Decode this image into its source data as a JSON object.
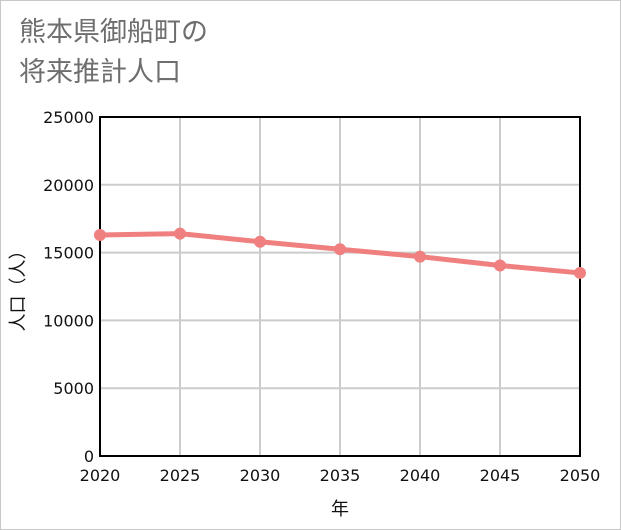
{
  "chart_data": {
    "type": "line",
    "title": "熊本県御船町の\n将来推計人口",
    "xlabel": "年",
    "ylabel": "人口（人）",
    "x": [
      2020,
      2025,
      2030,
      2035,
      2040,
      2045,
      2050
    ],
    "series": [
      {
        "name": "人口",
        "values": [
          16300,
          16400,
          15800,
          15250,
          14700,
          14050,
          13500
        ]
      }
    ],
    "xlim": [
      2020,
      2050
    ],
    "ylim": [
      0,
      25000
    ],
    "yticks": [
      0,
      5000,
      10000,
      15000,
      20000,
      25000
    ],
    "grid": true,
    "line_color": "#f08080",
    "grid_color": "#cccccc",
    "axis_color": "#000000"
  }
}
